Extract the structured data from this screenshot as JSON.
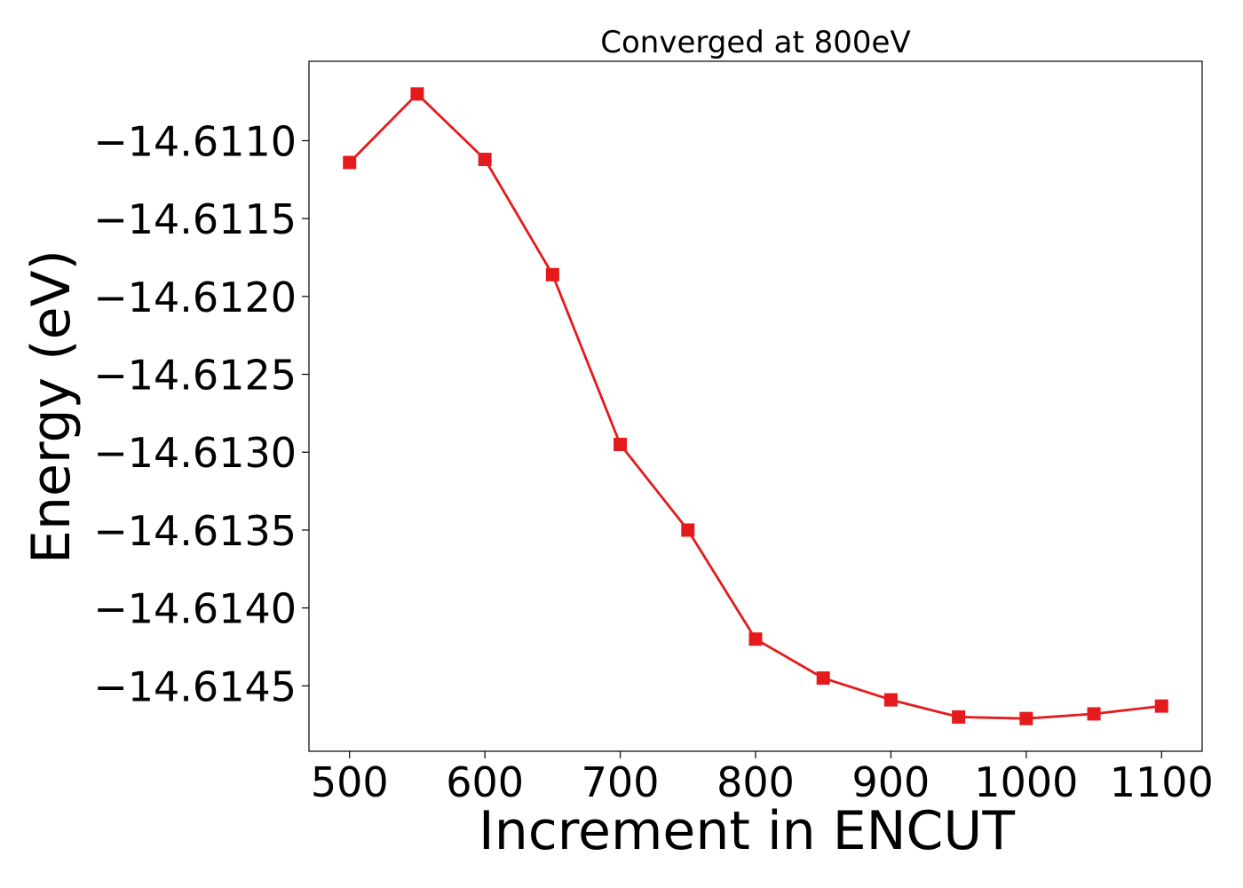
{
  "chart_data": {
    "type": "line",
    "title": "Converged at 800eV",
    "xlabel": "Increment in ENCUT",
    "ylabel": "Energy (eV)",
    "xlim": [
      470,
      1130
    ],
    "ylim": [
      -14.61492,
      -14.61049
    ],
    "xticks": [
      500,
      600,
      700,
      800,
      900,
      1000,
      1100
    ],
    "xtick_labels": [
      "500",
      "600",
      "700",
      "800",
      "900",
      "1000",
      "1100"
    ],
    "yticks": [
      -14.611,
      -14.6115,
      -14.612,
      -14.6125,
      -14.613,
      -14.6135,
      -14.614,
      -14.6145
    ],
    "ytick_labels": [
      "−14.6110",
      "−14.6115",
      "−14.6120",
      "−14.6125",
      "−14.6130",
      "−14.6135",
      "−14.6140",
      "−14.6145"
    ],
    "grid": false,
    "series": [
      {
        "color": "#e41a1c",
        "marker": "square",
        "x": [
          500,
          550,
          600,
          650,
          700,
          750,
          800,
          850,
          900,
          950,
          1000,
          1050,
          1100
        ],
        "y": [
          -14.61114,
          -14.6107,
          -14.61112,
          -14.61186,
          -14.61295,
          -14.6135,
          -14.6142,
          -14.61445,
          -14.61459,
          -14.6147,
          -14.61471,
          -14.61468,
          -14.61463
        ]
      }
    ]
  }
}
